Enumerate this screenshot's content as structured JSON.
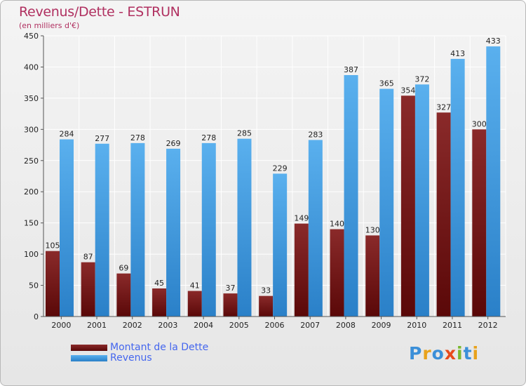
{
  "header": {
    "title": "Revenus/Dette - ESTRUN",
    "subtitle": "(en milliers d'€)"
  },
  "logo": {
    "text": "Proxiti",
    "letters": [
      "P",
      "r",
      "o",
      "x",
      "i",
      "t",
      "i"
    ],
    "colors": [
      "#3b8fd8",
      "#e8a21b",
      "#3b8fd8",
      "#e84a1b",
      "#7ab82e",
      "#3b8fd8",
      "#e8a21b"
    ]
  },
  "colors": {
    "dette": "#7a1a1a",
    "revenus": "#3d9be0",
    "title": "#b03060",
    "legend_text": "#4466ee"
  },
  "chart_data": {
    "type": "bar",
    "title": "Revenus/Dette - ESTRUN",
    "subtitle": "(en milliers d'€)",
    "categories": [
      "2000",
      "2001",
      "2002",
      "2003",
      "2004",
      "2005",
      "2006",
      "2007",
      "2008",
      "2009",
      "2010",
      "2011",
      "2012"
    ],
    "series": [
      {
        "name": "Montant de la Dette",
        "values": [
          105,
          87,
          69,
          45,
          41,
          37,
          33,
          149,
          140,
          130,
          354,
          327,
          300
        ]
      },
      {
        "name": "Revenus",
        "values": [
          284,
          277,
          278,
          269,
          278,
          285,
          229,
          283,
          387,
          365,
          372,
          413,
          433
        ]
      }
    ],
    "ylim": [
      0,
      450
    ],
    "yticks": [
      0,
      50,
      100,
      150,
      200,
      250,
      300,
      350,
      400,
      450
    ],
    "grid": true,
    "legend_position": "bottom-left"
  }
}
